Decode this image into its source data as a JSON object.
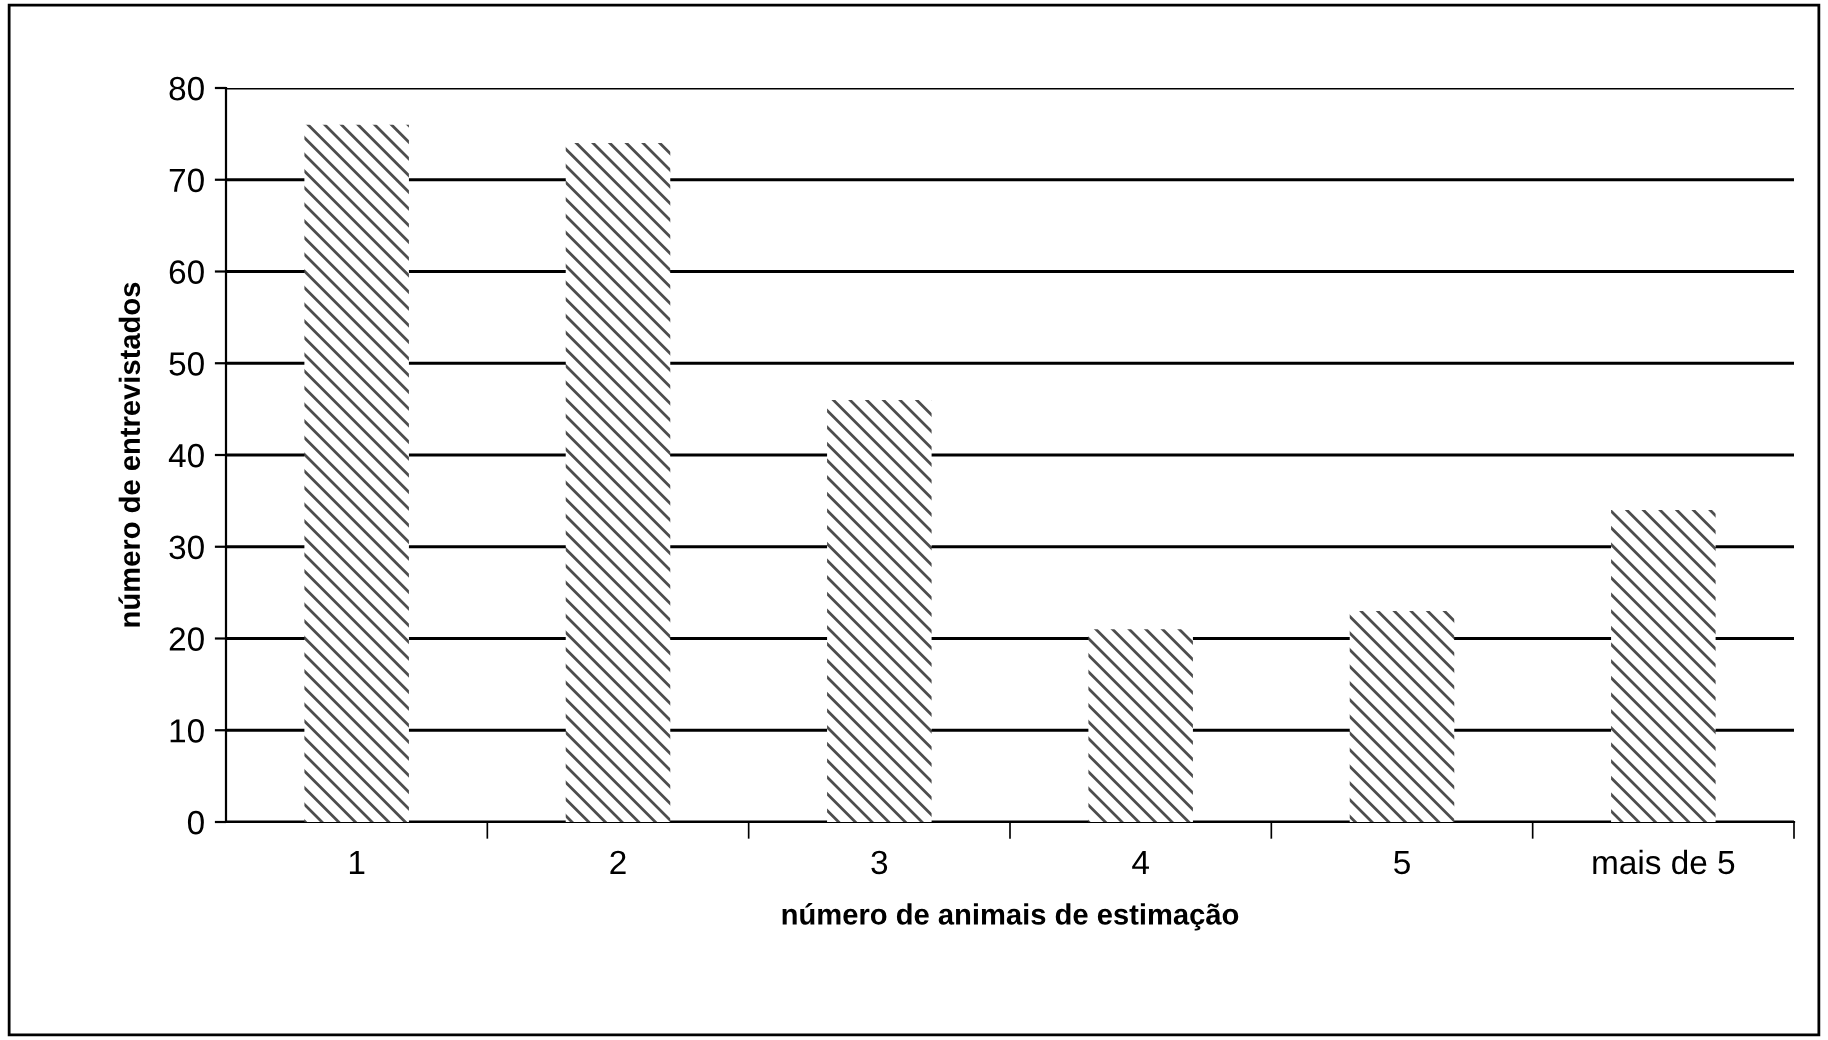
{
  "chart_data": {
    "type": "bar",
    "xlabel": "número de animais de estimação",
    "ylabel": "número de entrevistados",
    "categories": [
      "1",
      "2",
      "3",
      "4",
      "5",
      "mais de 5"
    ],
    "values": [
      76,
      74,
      46,
      21,
      23,
      34
    ],
    "color": "#4d4d4d",
    "ylim": [
      0,
      80
    ],
    "yticks": [
      0,
      10,
      20,
      30,
      40,
      50,
      60,
      70,
      80
    ],
    "grid": "y",
    "legend": false
  }
}
